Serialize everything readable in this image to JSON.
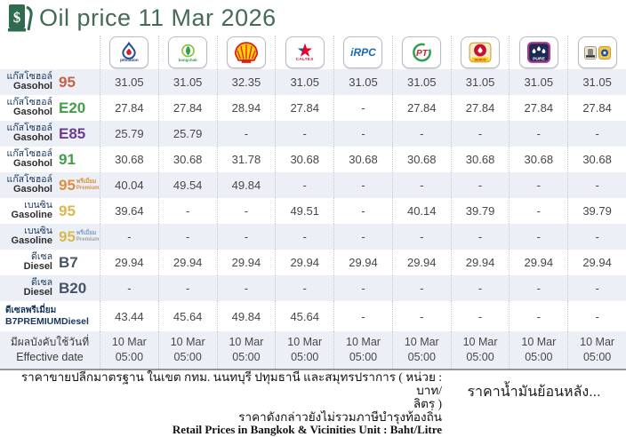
{
  "header": {
    "title": "Oil price 11 Mar 2026",
    "icon": "fuel-pump-dollar-icon"
  },
  "table": {
    "brands": [
      {
        "id": "ptt",
        "label": "pttstation"
      },
      {
        "id": "bangchak",
        "label": "bangchak"
      },
      {
        "id": "shell",
        "label": ""
      },
      {
        "id": "caltex",
        "label": "CALTEX"
      },
      {
        "id": "irpc",
        "label": "iRPC"
      },
      {
        "id": "pt",
        "label": "PT"
      },
      {
        "id": "susco",
        "label": "SUSCO"
      },
      {
        "id": "pure",
        "label": "PURE"
      },
      {
        "id": "susco-dealers",
        "label": ""
      }
    ],
    "rows": [
      {
        "thai": "แก๊สโซฮอล์",
        "eng": "Gasohol",
        "grade": "95",
        "color": "#c4604a",
        "prices": [
          "31.05",
          "31.05",
          "32.35",
          "31.05",
          "31.05",
          "31.05",
          "31.05",
          "31.05",
          "31.05"
        ]
      },
      {
        "thai": "แก๊สโซฮอล์",
        "eng": "Gasohol",
        "grade": "E20",
        "color": "#3fa044",
        "prices": [
          "27.84",
          "27.84",
          "28.94",
          "27.84",
          "-",
          "27.84",
          "27.84",
          "27.84",
          "27.84"
        ]
      },
      {
        "thai": "แก๊สโซฮอล์",
        "eng": "Gasohol",
        "grade": "E85",
        "color": "#6a3b93",
        "prices": [
          "25.79",
          "25.79",
          "-",
          "-",
          "-",
          "-",
          "-",
          "-",
          "-"
        ]
      },
      {
        "thai": "แก๊สโซฮอล์",
        "eng": "Gasohol",
        "grade": "91",
        "color": "#3fa044",
        "prices": [
          "30.68",
          "30.68",
          "31.78",
          "30.68",
          "30.68",
          "30.68",
          "30.68",
          "30.68",
          "30.68"
        ]
      },
      {
        "thai": "แก๊สโซฮอล์",
        "eng": "Gasohol",
        "grade": "95",
        "color": "#dc8f3e",
        "suffix_thai": "พรีเมี่ยม",
        "suffix_eng": "Premium",
        "suffix_thai_color": "#dc8f3e",
        "suffix_eng_color": "#dc8f3e",
        "prices": [
          "40.04",
          "49.54",
          "49.84",
          "-",
          "-",
          "-",
          "-",
          "-",
          "-"
        ]
      },
      {
        "thai": "เบนซิน",
        "eng": "Gasoline",
        "grade": "95",
        "color": "#d8b94e",
        "prices": [
          "39.64",
          "-",
          "-",
          "49.51",
          "-",
          "40.14",
          "39.79",
          "-",
          "39.79"
        ]
      },
      {
        "thai": "เบนซิน",
        "eng": "Gasoline",
        "grade": "95",
        "color": "#d8b94e",
        "suffix_thai": "พรีเมี่ยม",
        "suffix_eng": "Premium",
        "suffix_thai_color": "#7f9ecf",
        "suffix_eng_color": "#a0a0a0",
        "prices": [
          "-",
          "-",
          "-",
          "-",
          "-",
          "-",
          "-",
          "-",
          "-"
        ]
      },
      {
        "thai": "ดีเซล",
        "eng": "Diesel",
        "grade": "B7",
        "color": "#44546a",
        "prices": [
          "29.94",
          "29.94",
          "29.94",
          "29.94",
          "29.94",
          "29.94",
          "29.94",
          "29.94",
          "29.94"
        ]
      },
      {
        "thai": "ดีเซล",
        "eng": "Diesel",
        "grade": "B20",
        "color": "#44546a",
        "prices": [
          "-",
          "-",
          "-",
          "-",
          "-",
          "-",
          "-",
          "-",
          "-"
        ]
      },
      {
        "thai": "ดีเซลพรีเมี่ยม",
        "eng": "B7PREMIUMDiesel",
        "compact": true,
        "prices": [
          "43.44",
          "45.64",
          "49.84",
          "45.64",
          "-",
          "-",
          "-",
          "-",
          "-"
        ]
      }
    ],
    "effective": {
      "thai": "มีผลบังคับใช้วันที่",
      "eng": "Effective date",
      "date": "10 Mar",
      "time": "05:00",
      "columns": 9
    }
  },
  "footer": {
    "line1": "ราคาขายปลีกมาตรฐาน ในเขต กทม. นนทบุรี ปทุมธานี และสมุทรปราการ ( หน่วย : บาท/",
    "line2": "ลิตร )",
    "line3": "ราคาดังกล่าวยังไม่รวมภาษีบำรุงท้องถิ่น",
    "line4": "Retail Prices in Bangkok & Vicinities Unit : Baht/Litre",
    "history_link": "ราคาน้ำมันย้อนหลัง..."
  }
}
